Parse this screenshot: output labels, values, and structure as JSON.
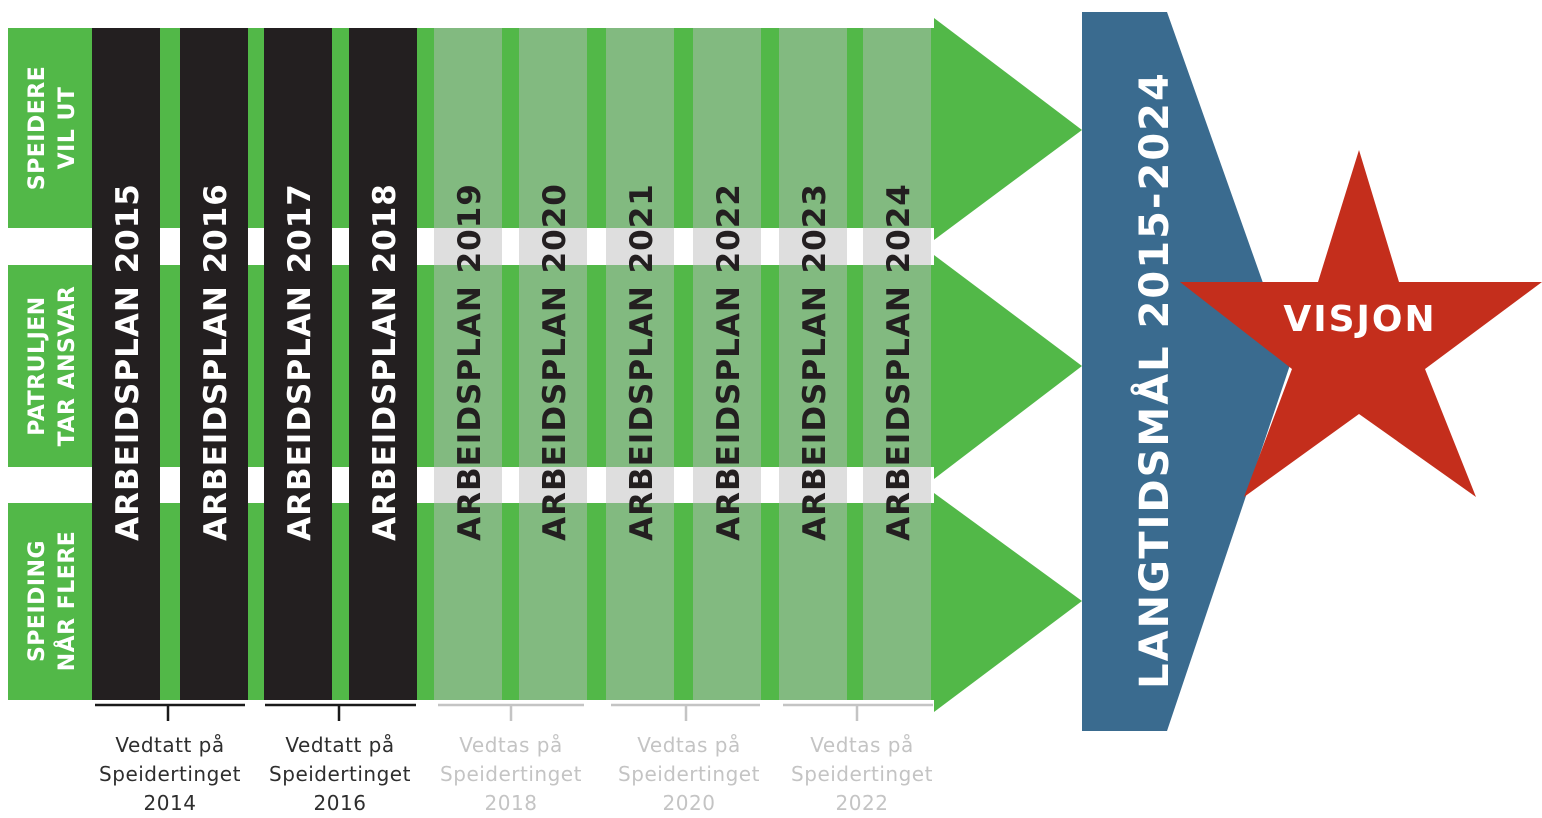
{
  "colors": {
    "green": "#52b848",
    "green_light": "#82ba80",
    "black": "#231f20",
    "gray_gap": "#dedede",
    "blue": "#3a6b8f",
    "red": "#c42e1c",
    "white": "#ffffff",
    "text_dark": "#2e2e2e",
    "text_light": "#c4c4c4"
  },
  "goals": [
    {
      "line1": "SPEIDERE",
      "line2": "VIL UT"
    },
    {
      "line1": "PATRULJEN",
      "line2": "TAR ANSVAR"
    },
    {
      "line1": "SPEIDING",
      "line2": "NÅR FLERE"
    }
  ],
  "plans": [
    {
      "label": "ARBEIDSPLAN 2015",
      "status": "adopted"
    },
    {
      "label": "ARBEIDSPLAN 2016",
      "status": "adopted"
    },
    {
      "label": "ARBEIDSPLAN 2017",
      "status": "adopted"
    },
    {
      "label": "ARBEIDSPLAN 2018",
      "status": "adopted"
    },
    {
      "label": "ARBEIDSPLAN 2019",
      "status": "planned"
    },
    {
      "label": "ARBEIDSPLAN 2020",
      "status": "planned"
    },
    {
      "label": "ARBEIDSPLAN 2021",
      "status": "planned"
    },
    {
      "label": "ARBEIDSPLAN 2022",
      "status": "planned"
    },
    {
      "label": "ARBEIDSPLAN 2023",
      "status": "planned"
    },
    {
      "label": "ARBEIDSPLAN 2024",
      "status": "planned"
    }
  ],
  "captions": [
    {
      "line1": "Vedtatt på",
      "line2": "Speidertinget",
      "line3": "2014",
      "status": "adopted"
    },
    {
      "line1": "Vedtatt på",
      "line2": "Speidertinget",
      "line3": "2016",
      "status": "adopted"
    },
    {
      "line1": "Vedtas på",
      "line2": "Speidertinget",
      "line3": "2018",
      "status": "planned"
    },
    {
      "line1": "Vedtas på",
      "line2": "Speidertinget",
      "line3": "2020",
      "status": "planned"
    },
    {
      "line1": "Vedtas på",
      "line2": "Speidertinget",
      "line3": "2022",
      "status": "planned"
    }
  ],
  "long_term": {
    "label": "LANGTIDSMÅL 2015-2024"
  },
  "vision": {
    "label": "VISJON"
  }
}
